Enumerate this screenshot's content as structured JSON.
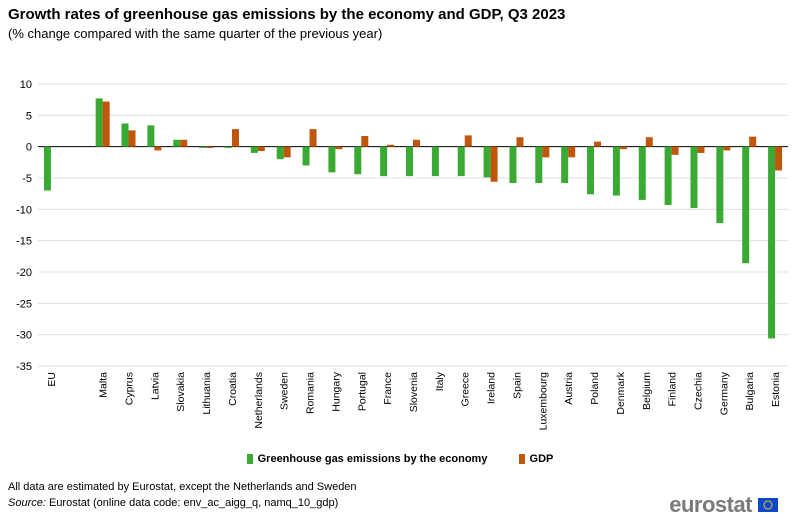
{
  "title": "Growth rates of greenhouse gas emissions by the economy and GDP, Q3 2023",
  "subtitle": "(% change compared with the same quarter of the previous year)",
  "chart_data": {
    "type": "bar",
    "categories": [
      "EU",
      "",
      "Malta",
      "Cyprus",
      "Latvia",
      "Slovakia",
      "Lithuania",
      "Croatia",
      "Netherlands",
      "Sweden",
      "Romania",
      "Hungary",
      "Portugal",
      "France",
      "Slovenia",
      "Italy",
      "Greece",
      "Ireland",
      "Spain",
      "Luxembourg",
      "Austria",
      "Poland",
      "Denmark",
      "Belgium",
      "Finland",
      "Czechia",
      "Germany",
      "Bulgaria",
      "Estonia"
    ],
    "series": [
      {
        "name": "Greenhouse gas emissions by the economy",
        "color": "#3aaa35",
        "values": [
          -7.0,
          null,
          7.7,
          3.7,
          3.4,
          1.1,
          -0.2,
          -0.2,
          -1.0,
          -2.0,
          -3.0,
          -4.1,
          -4.4,
          -4.7,
          -4.7,
          -4.7,
          -4.7,
          -4.9,
          -5.8,
          -5.8,
          -5.8,
          -7.6,
          -7.8,
          -8.5,
          -9.3,
          -9.8,
          -12.2,
          -18.6,
          -30.6
        ]
      },
      {
        "name": "GDP",
        "color": "#c0560c",
        "values": [
          0.0,
          null,
          7.2,
          2.6,
          -0.6,
          1.1,
          -0.2,
          2.8,
          -0.7,
          -1.7,
          2.8,
          -0.4,
          1.7,
          0.3,
          1.1,
          0.0,
          1.8,
          -5.6,
          1.5,
          -1.7,
          -1.7,
          0.8,
          -0.4,
          1.5,
          -1.3,
          -1.0,
          -0.6,
          1.6,
          -3.8
        ]
      }
    ],
    "ylim": [
      -35,
      10
    ],
    "yticks": [
      10,
      5,
      0,
      -5,
      -10,
      -15,
      -20,
      -25,
      -30,
      -35
    ],
    "grid": true,
    "legend_position": "bottom-center"
  },
  "legend": {
    "ghg_label": "Greenhouse gas emissions by the economy",
    "gdp_label": "GDP",
    "ghg_color": "#3aaa35",
    "gdp_color": "#c0560c"
  },
  "footer": {
    "note": "All data are estimated by Eurostat, except the Netherlands and Sweden",
    "source_label": "Source:",
    "source_text": " Eurostat (online data code: env_ac_aigg_q, namq_10_gdp)"
  },
  "logo": {
    "text": "eurostat",
    "icon": "eu-flag-icon"
  }
}
